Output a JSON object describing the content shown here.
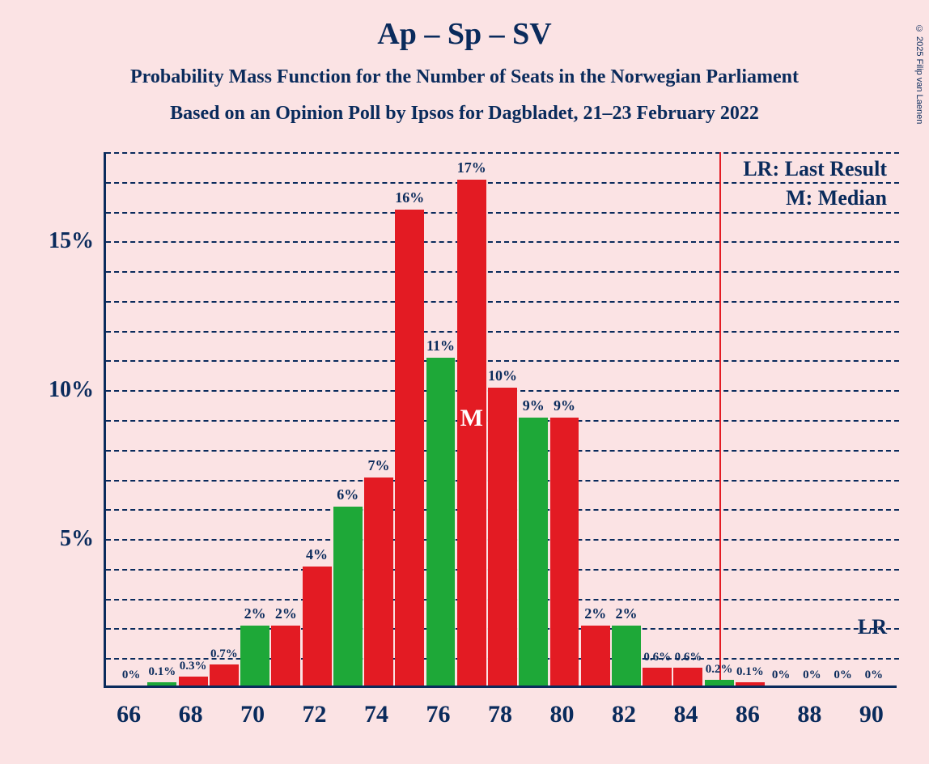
{
  "copyright": "© 2025 Filip van Laenen",
  "title": "Ap – Sp – SV",
  "subtitle1": "Probability Mass Function for the Number of Seats in the Norwegian Parliament",
  "subtitle2": "Based on an Opinion Poll by Ipsos for Dagbladet, 21–23 February 2022",
  "legend": {
    "lr": "LR: Last Result",
    "m": "M: Median",
    "lr_short": "LR"
  },
  "median_marker": "M",
  "chart": {
    "type": "bar",
    "background_color": "#fbe3e4",
    "axis_color": "#0a2b5c",
    "grid_color": "#0a2b5c",
    "grid_dash": "dashed",
    "text_color": "#0a2b5c",
    "title_fontsize": 38,
    "subtitle_fontsize": 24,
    "ytick_fontsize": 28,
    "xtick_fontsize": 30,
    "barlabel_fontsize_large": 18,
    "barlabel_fontsize_small": 15,
    "legend_fontsize": 26,
    "ylim": [
      0,
      18
    ],
    "y_major_ticks": [
      5,
      10,
      15
    ],
    "y_minor_step": 1,
    "x_range": [
      66,
      90
    ],
    "x_tick_step": 2,
    "bar_width_rel": 0.94,
    "bar_colors": {
      "red": "#e31b23",
      "green": "#1ea838"
    },
    "median_x": 77,
    "lr_x": 85,
    "lr_line_color": "#e31b23",
    "bars": [
      {
        "x": 66,
        "value": 0,
        "label": "0%",
        "color": "red"
      },
      {
        "x": 67,
        "value": 0.1,
        "label": "0.1%",
        "color": "green"
      },
      {
        "x": 68,
        "value": 0.3,
        "label": "0.3%",
        "color": "red"
      },
      {
        "x": 69,
        "value": 0.7,
        "label": "0.7%",
        "color": "red"
      },
      {
        "x": 70,
        "value": 2,
        "label": "2%",
        "color": "green"
      },
      {
        "x": 71,
        "value": 2,
        "label": "2%",
        "color": "red"
      },
      {
        "x": 72,
        "value": 4,
        "label": "4%",
        "color": "red"
      },
      {
        "x": 73,
        "value": 6,
        "label": "6%",
        "color": "green"
      },
      {
        "x": 74,
        "value": 7,
        "label": "7%",
        "color": "red"
      },
      {
        "x": 75,
        "value": 16,
        "label": "16%",
        "color": "red"
      },
      {
        "x": 76,
        "value": 11,
        "label": "11%",
        "color": "green"
      },
      {
        "x": 77,
        "value": 17,
        "label": "17%",
        "color": "red"
      },
      {
        "x": 78,
        "value": 10,
        "label": "10%",
        "color": "red"
      },
      {
        "x": 79,
        "value": 9,
        "label": "9%",
        "color": "green"
      },
      {
        "x": 80,
        "value": 9,
        "label": "9%",
        "color": "red"
      },
      {
        "x": 81,
        "value": 2,
        "label": "2%",
        "color": "red"
      },
      {
        "x": 82,
        "value": 2,
        "label": "2%",
        "color": "green"
      },
      {
        "x": 83,
        "value": 0.6,
        "label": "0.6%",
        "color": "red"
      },
      {
        "x": 84,
        "value": 0.6,
        "label": "0.6%",
        "color": "red"
      },
      {
        "x": 85,
        "value": 0.2,
        "label": "0.2%",
        "color": "green"
      },
      {
        "x": 86,
        "value": 0.1,
        "label": "0.1%",
        "color": "red"
      },
      {
        "x": 87,
        "value": 0,
        "label": "0%",
        "color": "red"
      },
      {
        "x": 88,
        "value": 0,
        "label": "0%",
        "color": "green"
      },
      {
        "x": 89,
        "value": 0,
        "label": "0%",
        "color": "red"
      },
      {
        "x": 90,
        "value": 0,
        "label": "0%",
        "color": "red"
      }
    ]
  }
}
